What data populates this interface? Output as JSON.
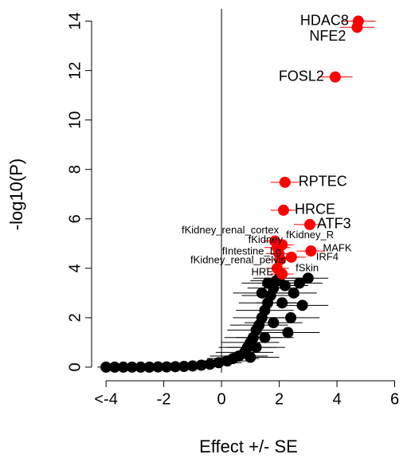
{
  "chart_data": {
    "type": "scatter",
    "x_label": "Effect +/- SE",
    "y_label": "-log10(P)",
    "xlim": [
      -4.5,
      6.4
    ],
    "ylim": [
      -0.55,
      14.5
    ],
    "xticks": [
      {
        "value": -4,
        "label": "<-4"
      },
      -2,
      0,
      2,
      4,
      6
    ],
    "yticks": [
      0,
      2,
      4,
      6,
      8,
      10,
      12,
      14
    ],
    "vline": 0,
    "series": [
      {
        "color": "#000000",
        "x": [
          -4,
          -3.7,
          -3.4,
          -3.1,
          -2.8,
          -2.5,
          -2.2,
          -1.9,
          -1.6,
          -1.3,
          -1,
          -0.7,
          -0.4,
          -0.1,
          0.2,
          0.4,
          0.6,
          0.8,
          0.9,
          1.0,
          1.1,
          1.2,
          1.3,
          1.4,
          1.5,
          1.6,
          1.7,
          1.8,
          1.9,
          2.0,
          2.2,
          2.5,
          2.7,
          3.0,
          2.4,
          2.8,
          1.5,
          1.2,
          1.0,
          1.8,
          2.1,
          2.3,
          1.6,
          1.4
        ],
        "values": [
          0,
          0,
          0,
          0,
          0,
          0,
          0.01,
          0.01,
          0.02,
          0.03,
          0.05,
          0.08,
          0.12,
          0.18,
          0.25,
          0.35,
          0.45,
          0.6,
          0.8,
          1.0,
          1.2,
          1.5,
          1.7,
          2.0,
          2.3,
          2.6,
          2.9,
          3.2,
          3.5,
          3.6,
          3.3,
          3.0,
          3.4,
          3.6,
          2.0,
          2.5,
          1.2,
          0.8,
          0.4,
          1.8,
          2.6,
          1.4,
          3.4,
          3.0
        ],
        "x_err": [
          0.3,
          0.3,
          0.3,
          0.3,
          0.3,
          0.3,
          0.4,
          0.4,
          0.4,
          0.5,
          0.5,
          0.6,
          0.7,
          0.8,
          0.9,
          0.9,
          1.0,
          1.0,
          1.0,
          1.0,
          1.0,
          1.0,
          1.0,
          1.0,
          1.0,
          1.0,
          1.0,
          0.9,
          0.9,
          0.9,
          0.8,
          0.8,
          0.8,
          0.7,
          1.0,
          0.9,
          1.0,
          1.0,
          1.0,
          1.0,
          0.9,
          1.1,
          0.9,
          1.0
        ]
      },
      {
        "color": "#ff0000",
        "x": [
          4.74,
          4.7,
          3.94,
          2.2,
          2.15,
          3.06,
          1.85,
          1.93,
          2.1,
          1.99,
          3.1,
          2.04,
          2.42,
          1.93,
          2.1
        ],
        "values": [
          14.0,
          13.75,
          11.74,
          7.48,
          6.35,
          5.77,
          5.1,
          4.84,
          4.95,
          4.6,
          4.7,
          4.35,
          4.45,
          4.0,
          3.77
        ],
        "x_err": [
          0.6,
          0.6,
          0.6,
          0.5,
          0.45,
          0.55,
          0.4,
          0.45,
          0.4,
          0.45,
          0.5,
          0.4,
          0.5,
          0.4,
          0.4
        ],
        "labels": [
          "HDAC8",
          "NFE2",
          "FOSL2",
          "RPTEC",
          "HRCE",
          "ATF3",
          "fKidney_renal_cortex",
          "fKidney",
          "fKidney_R",
          "fIntestine_Lg",
          "MAFK",
          "fKidney_renal_pelvis",
          "IRF4",
          "HRE",
          "fSkin"
        ]
      }
    ]
  }
}
